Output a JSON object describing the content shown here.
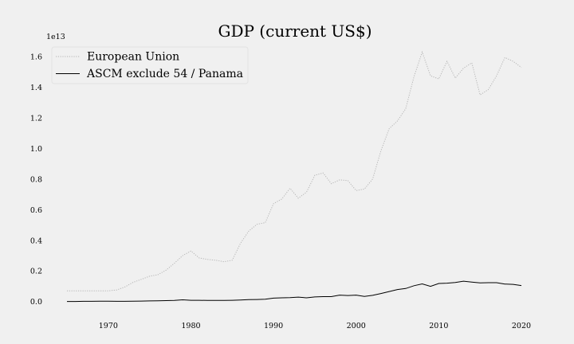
{
  "chart_data": {
    "type": "line",
    "title": "GDP (current US$)",
    "xlabel": "",
    "ylabel": "",
    "offset_label": "1e13",
    "xlim": [
      1962.2,
      2022.8
    ],
    "ylim": [
      -0.08,
      1.7
    ],
    "xticks": [
      1970,
      1980,
      1990,
      2000,
      2010,
      2020
    ],
    "yticks": [
      0.0,
      0.2,
      0.4,
      0.6,
      0.8,
      1.0,
      1.2,
      1.4,
      1.6
    ],
    "ytick_labels": [
      "0.0",
      "0.2",
      "0.4",
      "0.6",
      "0.8",
      "1.0",
      "1.2",
      "1.4",
      "1.6"
    ],
    "grid": false,
    "legend_position": "top-left",
    "x": [
      1965,
      1966,
      1967,
      1968,
      1969,
      1970,
      1971,
      1972,
      1973,
      1974,
      1975,
      1976,
      1977,
      1978,
      1979,
      1980,
      1981,
      1982,
      1983,
      1984,
      1985,
      1986,
      1987,
      1988,
      1989,
      1990,
      1991,
      1992,
      1993,
      1994,
      1995,
      1996,
      1997,
      1998,
      1999,
      2000,
      2001,
      2002,
      2003,
      2004,
      2005,
      2006,
      2007,
      2008,
      2009,
      2010,
      2011,
      2012,
      2013,
      2014,
      2015,
      2016,
      2017,
      2018,
      2019,
      2020
    ],
    "series": [
      {
        "name": "European Union",
        "color": "#b5b5b5",
        "style": "dotted",
        "values": [
          0.07,
          0.07,
          0.07,
          0.07,
          0.07,
          0.07,
          0.075,
          0.095,
          0.125,
          0.145,
          0.165,
          0.175,
          0.205,
          0.25,
          0.3,
          0.33,
          0.285,
          0.275,
          0.27,
          0.26,
          0.27,
          0.38,
          0.46,
          0.505,
          0.515,
          0.64,
          0.67,
          0.74,
          0.675,
          0.715,
          0.825,
          0.84,
          0.77,
          0.795,
          0.79,
          0.725,
          0.735,
          0.8,
          0.985,
          1.13,
          1.18,
          1.26,
          1.47,
          1.63,
          1.475,
          1.455,
          1.57,
          1.46,
          1.525,
          1.56,
          1.35,
          1.385,
          1.475,
          1.595,
          1.57,
          1.53
        ]
      },
      {
        "name": "ASCM exclude 54 / Panama",
        "color": "#000000",
        "style": "solid",
        "values": [
          0.0,
          0.0,
          0.001,
          0.001,
          0.002,
          0.002,
          0.001,
          0.001,
          0.002,
          0.003,
          0.004,
          0.005,
          0.006,
          0.007,
          0.011,
          0.008,
          0.008,
          0.007,
          0.007,
          0.007,
          0.008,
          0.01,
          0.012,
          0.013,
          0.015,
          0.022,
          0.024,
          0.025,
          0.029,
          0.024,
          0.03,
          0.032,
          0.032,
          0.042,
          0.039,
          0.042,
          0.033,
          0.04,
          0.052,
          0.065,
          0.078,
          0.085,
          0.103,
          0.115,
          0.099,
          0.118,
          0.12,
          0.124,
          0.133,
          0.127,
          0.122,
          0.123,
          0.123,
          0.114,
          0.112,
          0.104
        ]
      }
    ]
  }
}
